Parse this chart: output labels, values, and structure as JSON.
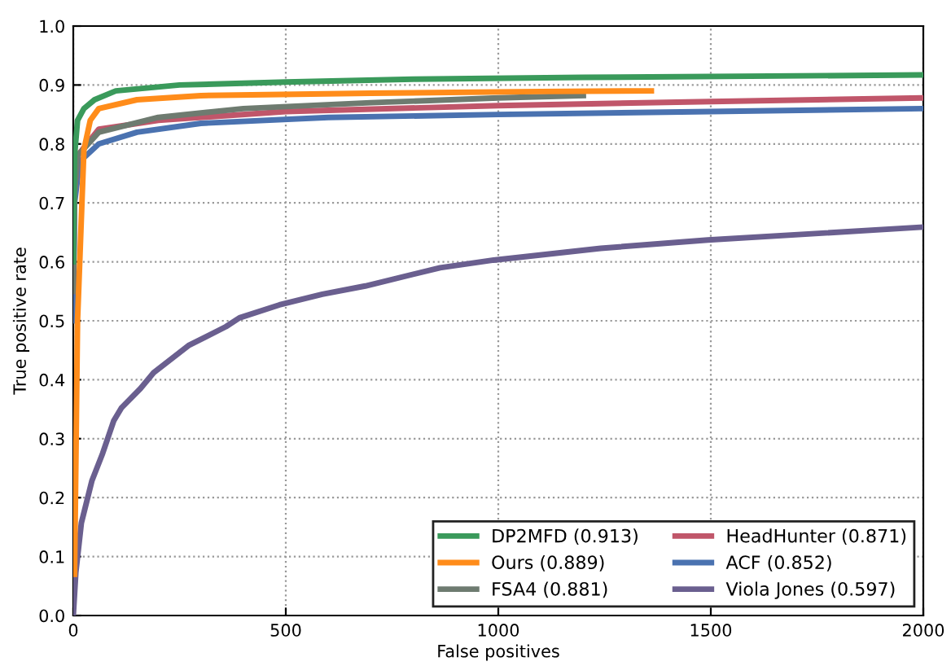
{
  "chart_data": {
    "type": "line",
    "xlabel": "False positives",
    "ylabel": "True positive rate",
    "xlim": [
      0,
      2000
    ],
    "ylim": [
      0,
      1.0
    ],
    "xticks": [
      0,
      500,
      1000,
      1500,
      2000
    ],
    "yticks": [
      {
        "value": 0,
        "label": "0.0"
      },
      {
        "value": 0.1,
        "label": "0.1"
      },
      {
        "value": 0.2,
        "label": "0.2"
      },
      {
        "value": 0.3,
        "label": "0.3"
      },
      {
        "value": 0.4,
        "label": "0.4"
      },
      {
        "value": 0.5,
        "label": "0.5"
      },
      {
        "value": 0.6,
        "label": "0.6"
      },
      {
        "value": 0.7,
        "label": "0.7"
      },
      {
        "value": 0.8,
        "label": "0.8"
      },
      {
        "value": 0.9,
        "label": "0.9"
      },
      {
        "value": 1.0,
        "label": "1.0"
      }
    ],
    "grid": true,
    "legend": "bottom right",
    "marker": "none",
    "line_style": "solid",
    "series": [
      {
        "name": "DP2MFD (0.913)",
        "color": "#3a9a5b",
        "x": [
          0,
          3,
          10,
          25,
          50,
          100,
          250,
          500,
          800,
          1200,
          2000
        ],
        "values": [
          0.6,
          0.78,
          0.84,
          0.86,
          0.875,
          0.89,
          0.9,
          0.905,
          0.91,
          0.913,
          0.917
        ]
      },
      {
        "name": "Ours (0.889)",
        "color": "#ff8c1a",
        "x": [
          3,
          10,
          25,
          40,
          60,
          150,
          300,
          700,
          1100,
          1360
        ],
        "values": [
          0.07,
          0.5,
          0.79,
          0.84,
          0.86,
          0.875,
          0.882,
          0.886,
          0.889,
          0.89
        ]
      },
      {
        "name": "FSA4 (0.881)",
        "color": "#6e7b70",
        "x": [
          0,
          3,
          10,
          60,
          200,
          400,
          700,
          1000,
          1200
        ],
        "values": [
          0.55,
          0.72,
          0.78,
          0.82,
          0.845,
          0.86,
          0.87,
          0.878,
          0.882
        ]
      },
      {
        "name": "HeadHunter (0.871)",
        "color": "#c0566a",
        "x": [
          0,
          3,
          10,
          60,
          200,
          500,
          1000,
          1500,
          2000
        ],
        "values": [
          0.55,
          0.72,
          0.78,
          0.825,
          0.84,
          0.855,
          0.865,
          0.872,
          0.878
        ]
      },
      {
        "name": "ACF (0.852)",
        "color": "#4a72b0",
        "x": [
          0,
          3,
          15,
          60,
          150,
          300,
          600,
          1000,
          1500,
          2000
        ],
        "values": [
          0.5,
          0.7,
          0.77,
          0.8,
          0.82,
          0.835,
          0.845,
          0.85,
          0.855,
          0.86
        ]
      },
      {
        "name": "Viola Jones (0.597)",
        "color": "#6a5f8f",
        "x": [
          0,
          6,
          19,
          44,
          69,
          95,
          113,
          158,
          189,
          271,
          359,
          391,
          485,
          586,
          687,
          863,
          989,
          1241,
          1493,
          2000
        ],
        "values": [
          0,
          0.073,
          0.157,
          0.229,
          0.275,
          0.33,
          0.352,
          0.385,
          0.412,
          0.458,
          0.49,
          0.505,
          0.527,
          0.545,
          0.559,
          0.59,
          0.603,
          0.623,
          0.637,
          0.659
        ]
      }
    ]
  }
}
